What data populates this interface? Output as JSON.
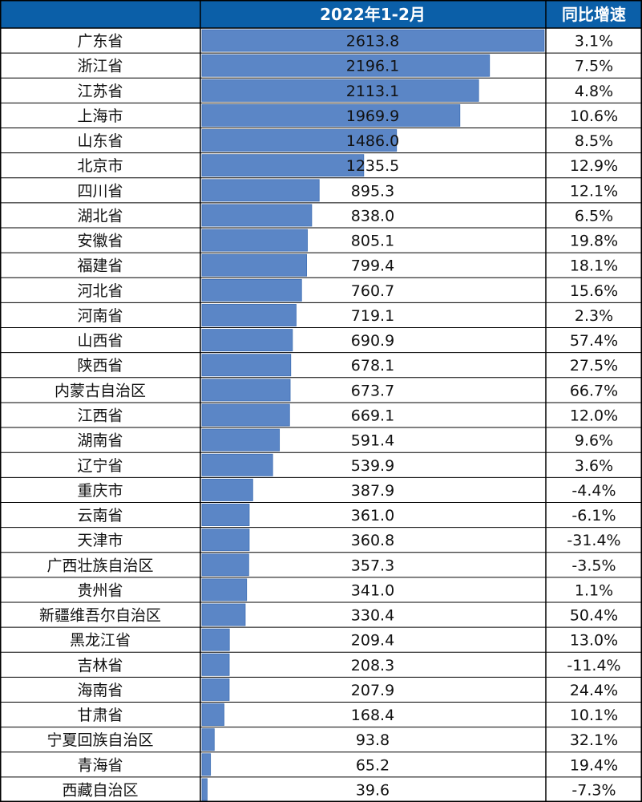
{
  "chart_data": {
    "type": "table",
    "headers": {
      "region": "",
      "value": "2022年1-2月",
      "growth": "同比增速"
    },
    "colors": {
      "header_bg": "#0b5fa8",
      "bar": "#5b86c6",
      "bar_edge": "#3f6fb4",
      "grid": "#000000"
    },
    "xlim": [
      0,
      2613.8
    ],
    "rows": [
      {
        "region": "广东省",
        "value": 2613.8,
        "label": "2613.8",
        "growth": "3.1%"
      },
      {
        "region": "浙江省",
        "value": 2196.1,
        "label": "2196.1",
        "growth": "7.5%"
      },
      {
        "region": "江苏省",
        "value": 2113.1,
        "label": "2113.1",
        "growth": "4.8%"
      },
      {
        "region": "上海市",
        "value": 1969.9,
        "label": "1969.9",
        "growth": "10.6%"
      },
      {
        "region": "山东省",
        "value": 1486.0,
        "label": "1486.0",
        "growth": "8.5%"
      },
      {
        "region": "北京市",
        "value": 1235.5,
        "label": "1235.5",
        "growth": "12.9%"
      },
      {
        "region": "四川省",
        "value": 895.3,
        "label": "895.3",
        "growth": "12.1%"
      },
      {
        "region": "湖北省",
        "value": 838.0,
        "label": "838.0",
        "growth": "6.5%"
      },
      {
        "region": "安徽省",
        "value": 805.1,
        "label": "805.1",
        "growth": "19.8%"
      },
      {
        "region": "福建省",
        "value": 799.4,
        "label": "799.4",
        "growth": "18.1%"
      },
      {
        "region": "河北省",
        "value": 760.7,
        "label": "760.7",
        "growth": "15.6%"
      },
      {
        "region": "河南省",
        "value": 719.1,
        "label": "719.1",
        "growth": "2.3%"
      },
      {
        "region": "山西省",
        "value": 690.9,
        "label": "690.9",
        "growth": "57.4%"
      },
      {
        "region": "陕西省",
        "value": 678.1,
        "label": "678.1",
        "growth": "27.5%"
      },
      {
        "region": "内蒙古自治区",
        "value": 673.7,
        "label": "673.7",
        "growth": "66.7%"
      },
      {
        "region": "江西省",
        "value": 669.1,
        "label": "669.1",
        "growth": "12.0%"
      },
      {
        "region": "湖南省",
        "value": 591.4,
        "label": "591.4",
        "growth": "9.6%"
      },
      {
        "region": "辽宁省",
        "value": 539.9,
        "label": "539.9",
        "growth": "3.6%"
      },
      {
        "region": "重庆市",
        "value": 387.9,
        "label": "387.9",
        "growth": "-4.4%"
      },
      {
        "region": "云南省",
        "value": 361.0,
        "label": "361.0",
        "growth": "-6.1%"
      },
      {
        "region": "天津市",
        "value": 360.8,
        "label": "360.8",
        "growth": "-31.4%"
      },
      {
        "region": "广西壮族自治区",
        "value": 357.3,
        "label": "357.3",
        "growth": "-3.5%"
      },
      {
        "region": "贵州省",
        "value": 341.0,
        "label": "341.0",
        "growth": "1.1%"
      },
      {
        "region": "新疆维吾尔自治区",
        "value": 330.4,
        "label": "330.4",
        "growth": "50.4%"
      },
      {
        "region": "黑龙江省",
        "value": 209.4,
        "label": "209.4",
        "growth": "13.0%"
      },
      {
        "region": "吉林省",
        "value": 208.3,
        "label": "208.3",
        "growth": "-11.4%"
      },
      {
        "region": "海南省",
        "value": 207.9,
        "label": "207.9",
        "growth": "24.4%"
      },
      {
        "region": "甘肃省",
        "value": 168.4,
        "label": "168.4",
        "growth": "10.1%"
      },
      {
        "region": "宁夏回族自治区",
        "value": 93.8,
        "label": "93.8",
        "growth": "32.1%"
      },
      {
        "region": "青海省",
        "value": 65.2,
        "label": "65.2",
        "growth": "19.4%"
      },
      {
        "region": "西藏自治区",
        "value": 39.6,
        "label": "39.6",
        "growth": "-7.3%"
      }
    ]
  }
}
